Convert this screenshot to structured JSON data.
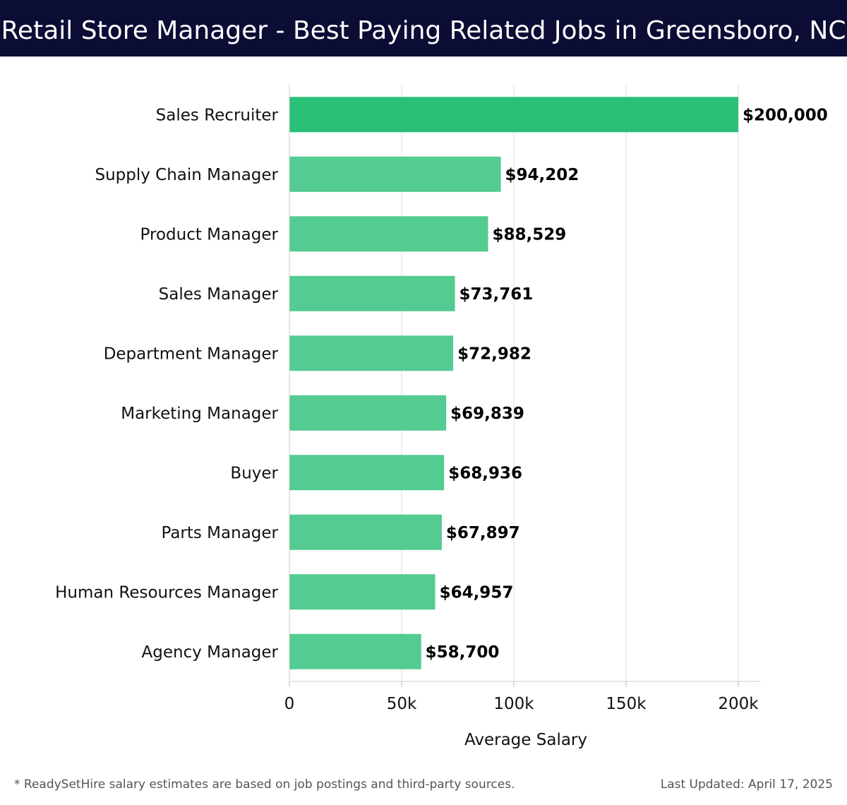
{
  "header": {
    "title": "Retail Store Manager - Best Paying Related Jobs in Greensboro, NC"
  },
  "footer": {
    "note": "* ReadySetHire salary estimates are based on job postings and third-party sources.",
    "updated": "Last Updated: April 17, 2025"
  },
  "colors": {
    "header_bg": "#0b0d35",
    "bar_top": "#2bbf78",
    "bar": "#53cb91",
    "grid": "#dddddd"
  },
  "chart_data": {
    "type": "bar",
    "orientation": "horizontal",
    "title": "",
    "xlabel": "Average Salary",
    "ylabel": "",
    "xlim": [
      0,
      210000
    ],
    "xticks": [
      0,
      50000,
      100000,
      150000,
      200000
    ],
    "xtick_labels": [
      "0",
      "50k",
      "100k",
      "150k",
      "200k"
    ],
    "grid": true,
    "categories": [
      "Sales Recruiter",
      "Supply Chain Manager",
      "Product Manager",
      "Sales Manager",
      "Department Manager",
      "Marketing Manager",
      "Buyer",
      "Parts Manager",
      "Human Resources Manager",
      "Agency Manager"
    ],
    "values": [
      200000,
      94202,
      88529,
      73761,
      72982,
      69839,
      68936,
      67897,
      64957,
      58700
    ],
    "value_labels": [
      "$200,000",
      "$94,202",
      "$88,529",
      "$73,761",
      "$72,982",
      "$69,839",
      "$68,936",
      "$67,897",
      "$64,957",
      "$58,700"
    ]
  }
}
